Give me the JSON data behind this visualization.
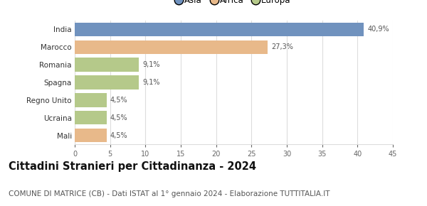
{
  "countries": [
    "India",
    "Marocco",
    "Romania",
    "Spagna",
    "Regno Unito",
    "Ucraina",
    "Mali"
  ],
  "values": [
    40.9,
    27.3,
    9.1,
    9.1,
    4.5,
    4.5,
    4.5
  ],
  "labels": [
    "40,9%",
    "27,3%",
    "9,1%",
    "9,1%",
    "4,5%",
    "4,5%",
    "4,5%"
  ],
  "colors": [
    "#7092be",
    "#e8b98a",
    "#b5c98a",
    "#b5c98a",
    "#b5c98a",
    "#b5c98a",
    "#e8b98a"
  ],
  "legend": [
    {
      "label": "Asia",
      "color": "#7092be"
    },
    {
      "label": "Africa",
      "color": "#e8b98a"
    },
    {
      "label": "Europa",
      "color": "#b5c98a"
    }
  ],
  "xlim": [
    0,
    45
  ],
  "xticks": [
    0,
    5,
    10,
    15,
    20,
    25,
    30,
    35,
    40,
    45
  ],
  "title": "Cittadini Stranieri per Cittadinanza - 2024",
  "subtitle": "COMUNE DI MATRICE (CB) - Dati ISTAT al 1° gennaio 2024 - Elaborazione TUTTITALIA.IT",
  "title_fontsize": 10.5,
  "subtitle_fontsize": 7.5,
  "background_color": "#ffffff",
  "grid_color": "#dddddd",
  "bar_height": 0.78
}
